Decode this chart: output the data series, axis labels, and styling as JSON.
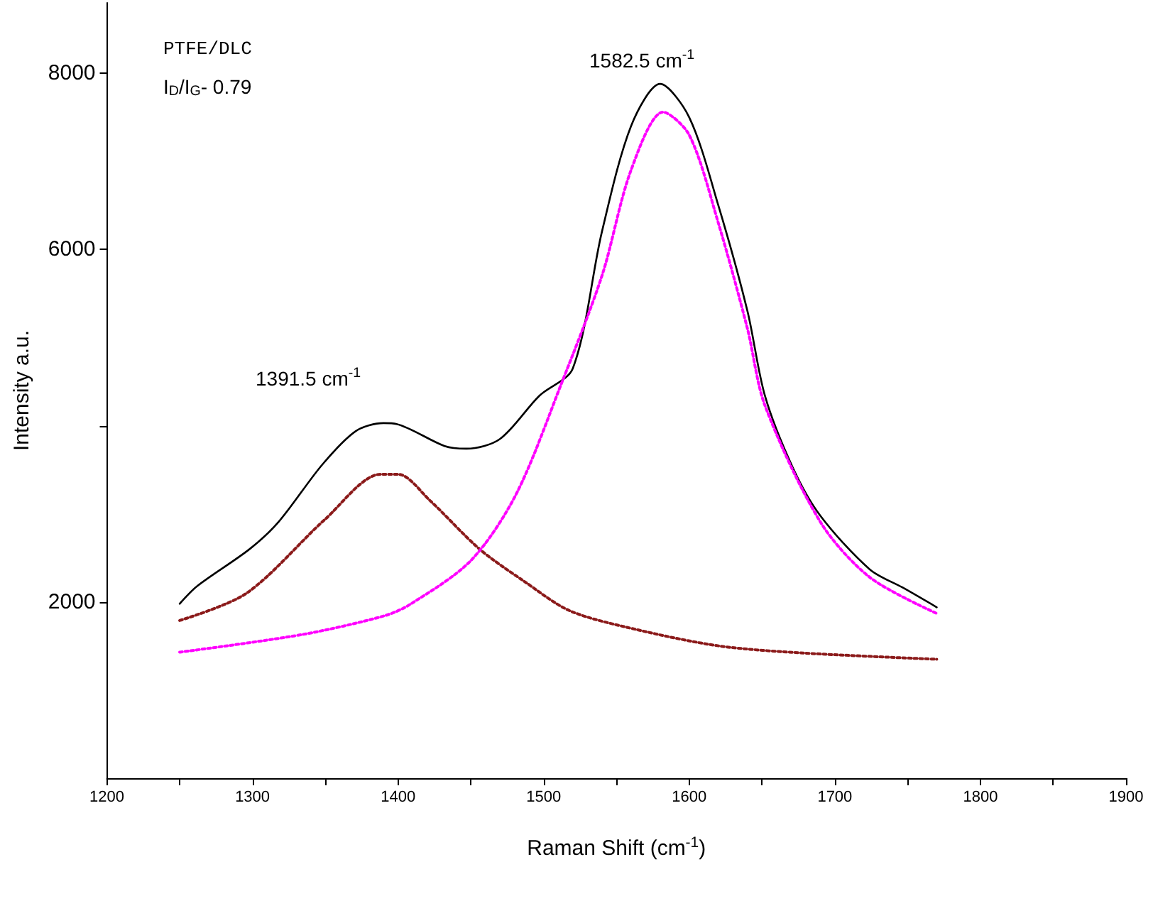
{
  "chart_data": {
    "type": "line",
    "xlabel": "Raman Shift (cm$^{-1}$)",
    "ylabel": "Intensity a.u.",
    "xlim": [
      1200,
      1900
    ],
    "ylim": [
      0,
      8800
    ],
    "xticks": [
      1200,
      {
        "value": 1250,
        "label": null
      },
      1300,
      {
        "value": 1350,
        "label": null
      },
      1400,
      {
        "value": 1450,
        "label": null
      },
      1500,
      {
        "value": 1550,
        "label": null
      },
      1600,
      {
        "value": 1650,
        "label": null
      },
      1700,
      {
        "value": 1750,
        "label": null
      },
      1800,
      {
        "value": 1850,
        "label": null
      },
      1900
    ],
    "yticks": [
      2000,
      {
        "value": 4000,
        "label": null
      },
      6000,
      8000
    ],
    "grid": false,
    "marker": "none",
    "series": [
      {
        "color": "#000000",
        "line_style": "solid",
        "x": [
          1250,
          1262,
          1298,
          1318,
          1348,
          1371,
          1390,
          1399,
          1432,
          1447,
          1470,
          1497,
          1520,
          1540,
          1560,
          1580,
          1600,
          1620,
          1640,
          1652,
          1671,
          1690,
          1724,
          1747,
          1770
        ],
        "values": [
          1980,
          2180,
          2600,
          2910,
          3560,
          3940,
          4030,
          4020,
          3770,
          3740,
          3850,
          4340,
          4650,
          6200,
          7400,
          7880,
          7500,
          6500,
          5300,
          4340,
          3530,
          2980,
          2370,
          2160,
          1940
        ]
      },
      {
        "color": "#8b1a1a",
        "line_style": "dotted",
        "x": [
          1250,
          1296,
          1350,
          1388,
          1400,
          1422,
          1456,
          1487,
          1518,
          1563,
          1621,
          1679,
          1770
        ],
        "values": [
          1790,
          2100,
          2940,
          3450,
          3450,
          3150,
          2600,
          2230,
          1900,
          1690,
          1500,
          1420,
          1350
        ]
      },
      {
        "color": "#ff00ff",
        "line_style": "dotted",
        "x": [
          1250,
          1334,
          1390,
          1408,
          1450,
          1481,
          1512,
          1540,
          1560,
          1582,
          1600,
          1620,
          1640,
          1652,
          1690,
          1724,
          1770
        ],
        "values": [
          1430,
          1630,
          1840,
          1970,
          2470,
          3220,
          4470,
          5700,
          6900,
          7560,
          7300,
          6300,
          5100,
          4230,
          2910,
          2280,
          1870
        ]
      }
    ],
    "annotations": [
      "PTFE/DLC",
      "I$_{D}$/I$_{G}$- 0.79",
      "1391.5 cm$^{-1}$",
      "1582.5 cm$^{-1}$"
    ]
  }
}
